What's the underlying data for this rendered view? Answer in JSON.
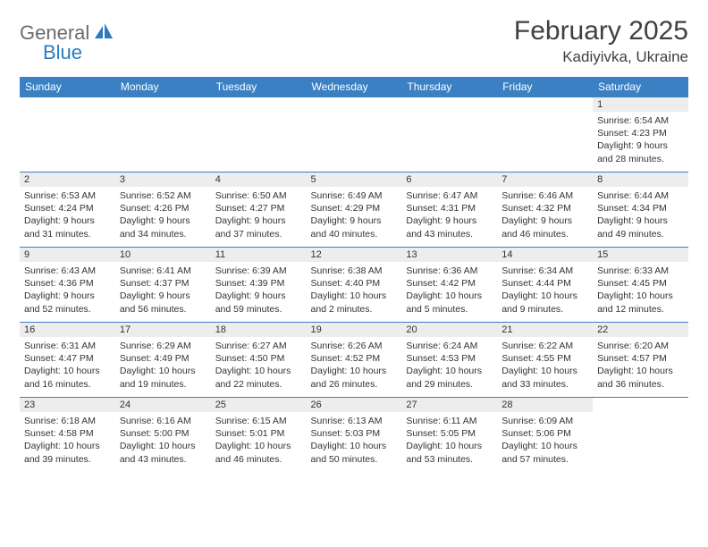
{
  "brand": {
    "word1": "General",
    "word2": "Blue"
  },
  "title": "February 2025",
  "location": "Kadiyivka, Ukraine",
  "header_bg": "#3a80c3",
  "header_fg": "#ffffff",
  "daynum_bg": "#ededed",
  "row_border": "#3a80c3",
  "text_color": "#333333",
  "brand_gray": "#6b6b6b",
  "brand_blue": "#2b7bbf",
  "dayNames": [
    "Sunday",
    "Monday",
    "Tuesday",
    "Wednesday",
    "Thursday",
    "Friday",
    "Saturday"
  ],
  "weeks": [
    [
      {
        "n": "",
        "sun": "",
        "set": "",
        "dl1": "",
        "dl2": "",
        "empty": true
      },
      {
        "n": "",
        "sun": "",
        "set": "",
        "dl1": "",
        "dl2": "",
        "empty": true
      },
      {
        "n": "",
        "sun": "",
        "set": "",
        "dl1": "",
        "dl2": "",
        "empty": true
      },
      {
        "n": "",
        "sun": "",
        "set": "",
        "dl1": "",
        "dl2": "",
        "empty": true
      },
      {
        "n": "",
        "sun": "",
        "set": "",
        "dl1": "",
        "dl2": "",
        "empty": true
      },
      {
        "n": "",
        "sun": "",
        "set": "",
        "dl1": "",
        "dl2": "",
        "empty": true
      },
      {
        "n": "1",
        "sun": "Sunrise: 6:54 AM",
        "set": "Sunset: 4:23 PM",
        "dl1": "Daylight: 9 hours",
        "dl2": "and 28 minutes."
      }
    ],
    [
      {
        "n": "2",
        "sun": "Sunrise: 6:53 AM",
        "set": "Sunset: 4:24 PM",
        "dl1": "Daylight: 9 hours",
        "dl2": "and 31 minutes."
      },
      {
        "n": "3",
        "sun": "Sunrise: 6:52 AM",
        "set": "Sunset: 4:26 PM",
        "dl1": "Daylight: 9 hours",
        "dl2": "and 34 minutes."
      },
      {
        "n": "4",
        "sun": "Sunrise: 6:50 AM",
        "set": "Sunset: 4:27 PM",
        "dl1": "Daylight: 9 hours",
        "dl2": "and 37 minutes."
      },
      {
        "n": "5",
        "sun": "Sunrise: 6:49 AM",
        "set": "Sunset: 4:29 PM",
        "dl1": "Daylight: 9 hours",
        "dl2": "and 40 minutes."
      },
      {
        "n": "6",
        "sun": "Sunrise: 6:47 AM",
        "set": "Sunset: 4:31 PM",
        "dl1": "Daylight: 9 hours",
        "dl2": "and 43 minutes."
      },
      {
        "n": "7",
        "sun": "Sunrise: 6:46 AM",
        "set": "Sunset: 4:32 PM",
        "dl1": "Daylight: 9 hours",
        "dl2": "and 46 minutes."
      },
      {
        "n": "8",
        "sun": "Sunrise: 6:44 AM",
        "set": "Sunset: 4:34 PM",
        "dl1": "Daylight: 9 hours",
        "dl2": "and 49 minutes."
      }
    ],
    [
      {
        "n": "9",
        "sun": "Sunrise: 6:43 AM",
        "set": "Sunset: 4:36 PM",
        "dl1": "Daylight: 9 hours",
        "dl2": "and 52 minutes."
      },
      {
        "n": "10",
        "sun": "Sunrise: 6:41 AM",
        "set": "Sunset: 4:37 PM",
        "dl1": "Daylight: 9 hours",
        "dl2": "and 56 minutes."
      },
      {
        "n": "11",
        "sun": "Sunrise: 6:39 AM",
        "set": "Sunset: 4:39 PM",
        "dl1": "Daylight: 9 hours",
        "dl2": "and 59 minutes."
      },
      {
        "n": "12",
        "sun": "Sunrise: 6:38 AM",
        "set": "Sunset: 4:40 PM",
        "dl1": "Daylight: 10 hours",
        "dl2": "and 2 minutes."
      },
      {
        "n": "13",
        "sun": "Sunrise: 6:36 AM",
        "set": "Sunset: 4:42 PM",
        "dl1": "Daylight: 10 hours",
        "dl2": "and 5 minutes."
      },
      {
        "n": "14",
        "sun": "Sunrise: 6:34 AM",
        "set": "Sunset: 4:44 PM",
        "dl1": "Daylight: 10 hours",
        "dl2": "and 9 minutes."
      },
      {
        "n": "15",
        "sun": "Sunrise: 6:33 AM",
        "set": "Sunset: 4:45 PM",
        "dl1": "Daylight: 10 hours",
        "dl2": "and 12 minutes."
      }
    ],
    [
      {
        "n": "16",
        "sun": "Sunrise: 6:31 AM",
        "set": "Sunset: 4:47 PM",
        "dl1": "Daylight: 10 hours",
        "dl2": "and 16 minutes."
      },
      {
        "n": "17",
        "sun": "Sunrise: 6:29 AM",
        "set": "Sunset: 4:49 PM",
        "dl1": "Daylight: 10 hours",
        "dl2": "and 19 minutes."
      },
      {
        "n": "18",
        "sun": "Sunrise: 6:27 AM",
        "set": "Sunset: 4:50 PM",
        "dl1": "Daylight: 10 hours",
        "dl2": "and 22 minutes."
      },
      {
        "n": "19",
        "sun": "Sunrise: 6:26 AM",
        "set": "Sunset: 4:52 PM",
        "dl1": "Daylight: 10 hours",
        "dl2": "and 26 minutes."
      },
      {
        "n": "20",
        "sun": "Sunrise: 6:24 AM",
        "set": "Sunset: 4:53 PM",
        "dl1": "Daylight: 10 hours",
        "dl2": "and 29 minutes."
      },
      {
        "n": "21",
        "sun": "Sunrise: 6:22 AM",
        "set": "Sunset: 4:55 PM",
        "dl1": "Daylight: 10 hours",
        "dl2": "and 33 minutes."
      },
      {
        "n": "22",
        "sun": "Sunrise: 6:20 AM",
        "set": "Sunset: 4:57 PM",
        "dl1": "Daylight: 10 hours",
        "dl2": "and 36 minutes."
      }
    ],
    [
      {
        "n": "23",
        "sun": "Sunrise: 6:18 AM",
        "set": "Sunset: 4:58 PM",
        "dl1": "Daylight: 10 hours",
        "dl2": "and 39 minutes."
      },
      {
        "n": "24",
        "sun": "Sunrise: 6:16 AM",
        "set": "Sunset: 5:00 PM",
        "dl1": "Daylight: 10 hours",
        "dl2": "and 43 minutes."
      },
      {
        "n": "25",
        "sun": "Sunrise: 6:15 AM",
        "set": "Sunset: 5:01 PM",
        "dl1": "Daylight: 10 hours",
        "dl2": "and 46 minutes."
      },
      {
        "n": "26",
        "sun": "Sunrise: 6:13 AM",
        "set": "Sunset: 5:03 PM",
        "dl1": "Daylight: 10 hours",
        "dl2": "and 50 minutes."
      },
      {
        "n": "27",
        "sun": "Sunrise: 6:11 AM",
        "set": "Sunset: 5:05 PM",
        "dl1": "Daylight: 10 hours",
        "dl2": "and 53 minutes."
      },
      {
        "n": "28",
        "sun": "Sunrise: 6:09 AM",
        "set": "Sunset: 5:06 PM",
        "dl1": "Daylight: 10 hours",
        "dl2": "and 57 minutes."
      },
      {
        "n": "",
        "sun": "",
        "set": "",
        "dl1": "",
        "dl2": "",
        "empty": true
      }
    ]
  ]
}
